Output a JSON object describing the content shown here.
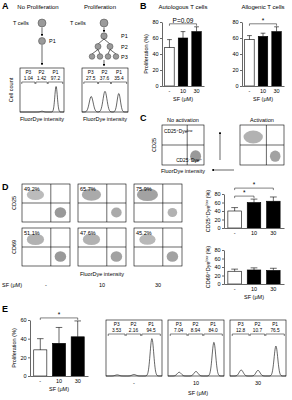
{
  "chart_data": [
    {
      "type": "bar",
      "title": "Autologous T cells",
      "ylabel": "Proliferation (%)",
      "xlabel": "SF (μM)",
      "categories": [
        "-",
        "10",
        "30"
      ],
      "values": [
        48,
        60,
        68
      ],
      "errors": [
        10,
        8,
        6
      ],
      "colors": [
        "#ffffff",
        "#000000",
        "#000000"
      ],
      "ylim": [
        0,
        80
      ],
      "yticks": [
        0,
        20,
        40,
        60,
        80
      ],
      "annotations": [
        {
          "text": "P=0.09",
          "between": [
            "-",
            "30"
          ]
        }
      ]
    },
    {
      "type": "bar",
      "title": "Allogenic T cells",
      "xlabel": "SF (μM)",
      "categories": [
        "-",
        "10",
        "30"
      ],
      "values": [
        58,
        62,
        68
      ],
      "errors": [
        5,
        4,
        6
      ],
      "colors": [
        "#ffffff",
        "#000000",
        "#000000"
      ],
      "ylim": [
        0,
        80
      ],
      "yticks": [
        0,
        20,
        40,
        60,
        80
      ],
      "annotations": [
        {
          "text": "*",
          "between": [
            "-",
            "30"
          ]
        }
      ]
    },
    {
      "type": "bar",
      "ylabel": "CD25⁺Dyeˡᵒʷ (%)",
      "categories": [
        "-",
        "10",
        "30"
      ],
      "values": [
        40,
        60,
        63
      ],
      "errors": [
        8,
        8,
        10
      ],
      "colors": [
        "#ffffff",
        "#000000",
        "#000000"
      ],
      "ylim": [
        0,
        80
      ],
      "yticks": [
        0,
        20,
        40,
        60,
        80
      ],
      "annotations": [
        {
          "text": "*",
          "between": [
            "-",
            "10"
          ]
        },
        {
          "text": "*",
          "between": [
            "-",
            "30"
          ]
        }
      ]
    },
    {
      "type": "bar",
      "ylabel": "CD69⁺Dyeˡᵒʷ (%)",
      "xlabel": "SF (μM)",
      "categories": [
        "-",
        "10",
        "30"
      ],
      "values": [
        30,
        33,
        32
      ],
      "errors": [
        5,
        5,
        5
      ],
      "colors": [
        "#ffffff",
        "#000000",
        "#000000"
      ],
      "ylim": [
        0,
        80
      ],
      "yticks": [
        0,
        20,
        40,
        60,
        80
      ]
    },
    {
      "type": "bar",
      "ylabel": "Proliferation (%)",
      "xlabel": "SF (μM)",
      "categories": [
        "-",
        "10",
        "30"
      ],
      "values": [
        28,
        35,
        42
      ],
      "errors": [
        12,
        17,
        17
      ],
      "colors": [
        "#ffffff",
        "#000000",
        "#000000"
      ],
      "ylim": [
        0,
        60
      ],
      "yticks": [
        0,
        20,
        40,
        60
      ],
      "annotations": [
        {
          "text": "*",
          "between": [
            "-",
            "30"
          ]
        }
      ]
    }
  ],
  "figure": {
    "panel_labels": [
      "A",
      "B",
      "C",
      "D",
      "E"
    ],
    "panel_a": {
      "left_title": "No Proliferation",
      "right_title": "Proliferation",
      "cells_label": "T cells",
      "generations": [
        "P1",
        "P2",
        "P3"
      ],
      "ylabel": "Cell count",
      "xlabel": "FluorDye intensity",
      "left_gates": [
        {
          "name": "P3",
          "value": "1.04"
        },
        {
          "name": "P2",
          "value": "1.42"
        },
        {
          "name": "P1",
          "value": "97.2"
        }
      ],
      "right_gates": [
        {
          "name": "P3",
          "value": "27.5"
        },
        {
          "name": "P2",
          "value": "37.6"
        },
        {
          "name": "P1",
          "value": "35.4"
        }
      ]
    },
    "panel_c": {
      "left_title": "No activation",
      "right_title": "Activation",
      "ylabel": "CD25",
      "xlabel": "FluorDye intensity",
      "upper_label": "CD25⁺Dyeˡᵒʷ",
      "lower_label": "CD25⁻Dye⁺"
    },
    "panel_d": {
      "rows": [
        {
          "label": "CD25",
          "percents": [
            "49.2%",
            "65.7%",
            "75.9%"
          ]
        },
        {
          "label": "CD69",
          "percents": [
            "51.1%",
            "47.6%",
            "45.2%"
          ]
        }
      ],
      "xlabel": "FluorDye intensity",
      "conditions_label": "SF (μM)",
      "conditions": [
        "-",
        "10",
        "30"
      ]
    },
    "panel_e": {
      "gates": [
        [
          {
            "name": "P3",
            "value": "3.53"
          },
          {
            "name": "P2",
            "value": "2.16"
          },
          {
            "name": "P1",
            "value": "94.5"
          }
        ],
        [
          {
            "name": "P3",
            "value": "7.04"
          },
          {
            "name": "P2",
            "value": "8.94"
          },
          {
            "name": "P1",
            "value": "84.0"
          }
        ],
        [
          {
            "name": "P3",
            "value": "12.8"
          },
          {
            "name": "P2",
            "value": "10.7"
          },
          {
            "name": "P1",
            "value": "76.5"
          }
        ]
      ],
      "conditions_label": "SF (μM)",
      "conditions": [
        "-",
        "10",
        "30"
      ]
    }
  }
}
